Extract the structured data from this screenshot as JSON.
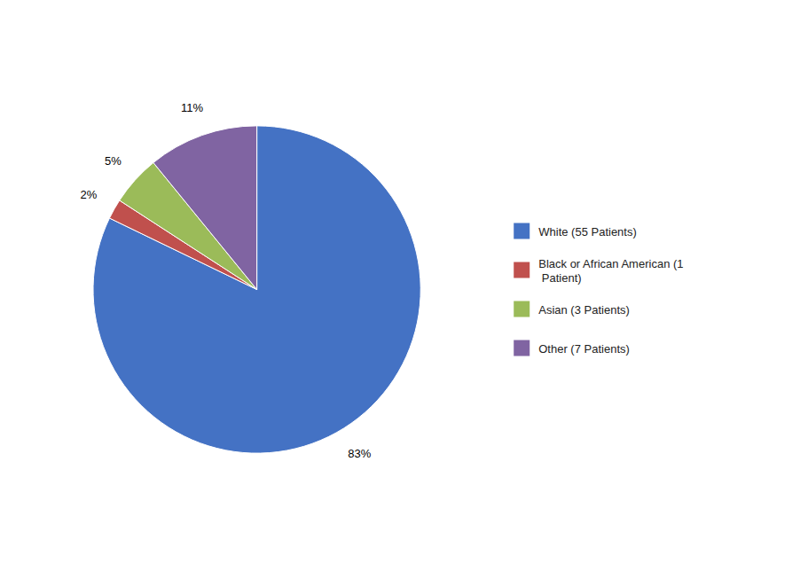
{
  "chart_data": {
    "type": "pie",
    "categories": [
      "White (55 Patients)",
      "Black or African American (1\n Patient)",
      "Asian (3 Patients)",
      "Other (7 Patients)"
    ],
    "values": [
      83,
      2,
      5,
      11
    ],
    "value_labels": [
      "83%",
      "2%",
      "5%",
      "11%"
    ],
    "colors": [
      "#4472C4",
      "#C0504D",
      "#9BBB59",
      "#8064A2"
    ],
    "data_labels": true,
    "legend": "right"
  }
}
